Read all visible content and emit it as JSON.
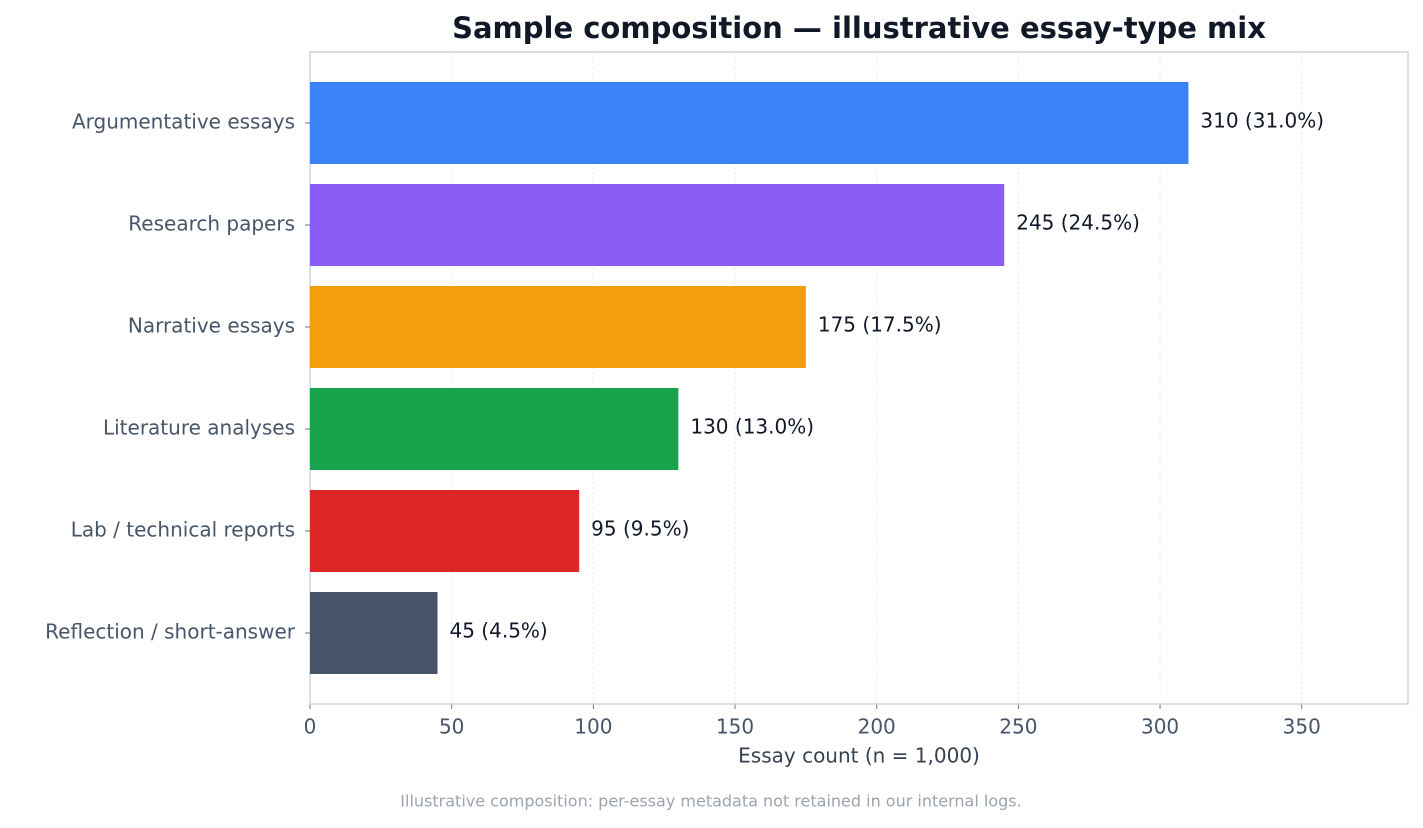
{
  "chart_data": {
    "type": "barh",
    "title": "Sample composition — illustrative essay-type mix",
    "categories": [
      "Argumentative essays",
      "Research papers",
      "Narrative essays",
      "Literature analyses",
      "Lab / technical reports",
      "Reflection / short-answer"
    ],
    "values": [
      310,
      245,
      175,
      130,
      95,
      45
    ],
    "value_labels": [
      "310 (31.0%)",
      "245 (24.5%)",
      "175 (17.5%)",
      "130 (13.0%)",
      "95 (9.5%)",
      "45 (4.5%)"
    ],
    "colors": [
      "#3b82f6",
      "#8b5cf6",
      "#f39e0c",
      "#16a34a",
      "#dc2626",
      "#475569"
    ],
    "xlim": [
      0,
      387.5
    ],
    "xticks": [
      0,
      50,
      100,
      150,
      200,
      250,
      300,
      350
    ],
    "xlabel": "Essay count (n = 1,000)",
    "grid": true,
    "footnote": "Illustrative composition: per-essay metadata not retained in our internal logs."
  }
}
